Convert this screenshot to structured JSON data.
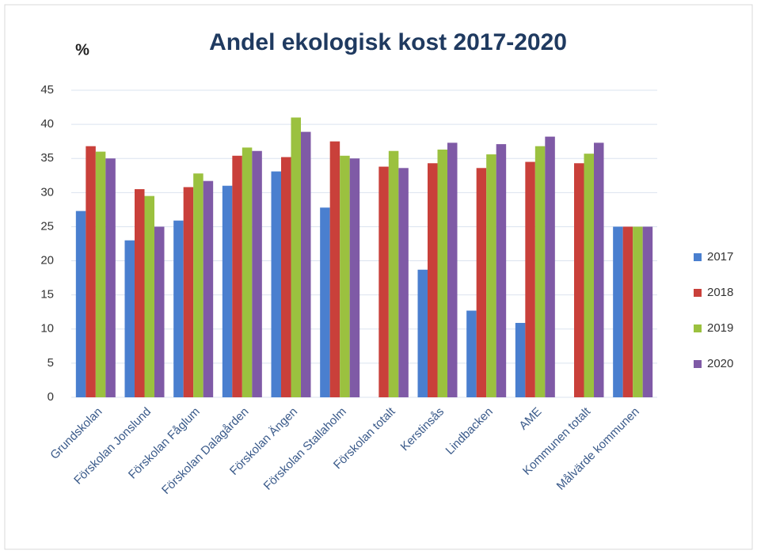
{
  "chart_data": {
    "type": "bar",
    "title": "Andel ekologisk kost 2017-2020",
    "y_label": "%",
    "categories": [
      "Grundskolan",
      "Förskolan Jonslund",
      "Förskolan Fåglum",
      "Förskolan Dalagården",
      "Förskolan Ängen",
      "Förskolan Stallaholm",
      "Förskolan totalt",
      "Kerstinsås",
      "Lindbacken",
      "AME",
      "Kommunen totalt",
      "Målvärde kommunen"
    ],
    "series": [
      {
        "name": "2017",
        "color": "#4a7fcf",
        "values": [
          27.3,
          23,
          25.9,
          31,
          33.1,
          27.8,
          null,
          18.7,
          12.7,
          10.9,
          null,
          25
        ]
      },
      {
        "name": "2018",
        "color": "#c9403a",
        "values": [
          36.8,
          30.5,
          30.8,
          35.4,
          35.2,
          37.5,
          33.8,
          34.3,
          33.6,
          34.5,
          34.3,
          25
        ]
      },
      {
        "name": "2019",
        "color": "#9bc13f",
        "values": [
          36,
          29.5,
          32.8,
          36.6,
          41,
          35.4,
          36.1,
          36.3,
          35.6,
          36.8,
          35.7,
          25
        ]
      },
      {
        "name": "2020",
        "color": "#7f5aa6",
        "values": [
          35,
          25,
          31.7,
          36.1,
          38.9,
          35,
          33.6,
          37.3,
          37.1,
          38.2,
          37.3,
          25
        ]
      }
    ],
    "ylim": [
      0,
      45
    ],
    "yticks": [
      0,
      5,
      10,
      15,
      20,
      25,
      30,
      35,
      40,
      45
    ],
    "grid": true,
    "legend": "right"
  }
}
